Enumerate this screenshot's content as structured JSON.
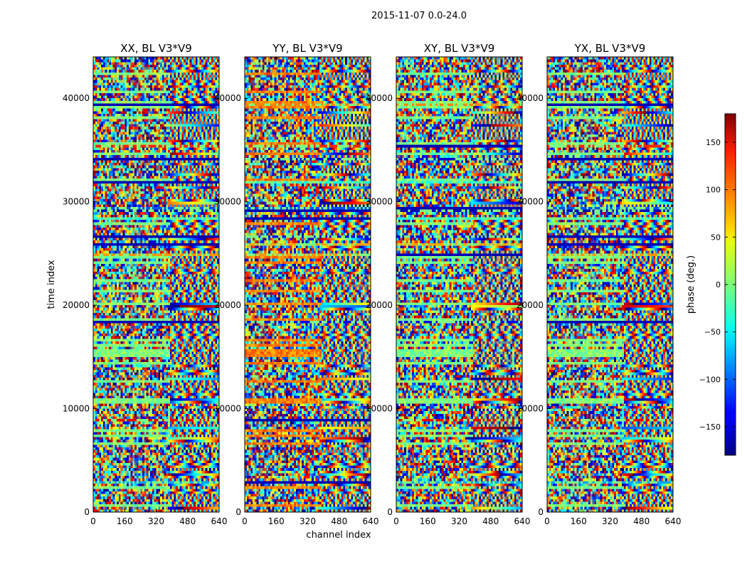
{
  "figure_title": "2015-11-07 0.0-24.0",
  "chart_data": {
    "type": "heatmap",
    "suptitle": "2015-11-07 0.0-24.0",
    "xlabel": "channel index",
    "ylabel": "time index",
    "xlim": [
      0,
      640
    ],
    "ylim": [
      0,
      44000
    ],
    "xticks": [
      0,
      160,
      320,
      480,
      640
    ],
    "yticks": [
      0,
      10000,
      20000,
      30000,
      40000
    ],
    "panels": [
      {
        "title": "XX, BL V3*V9"
      },
      {
        "title": "YY, BL V3*V9"
      },
      {
        "title": "XY, BL V3*V9"
      },
      {
        "title": "YX, BL V3*V9"
      }
    ],
    "colorbar": {
      "label": "phase (deg.)",
      "range": [
        -180,
        180
      ],
      "ticks": [
        -150,
        -100,
        -50,
        0,
        50,
        100,
        150
      ],
      "colormap": "jet"
    }
  },
  "colors": {
    "background": "#ffffff",
    "axes": "#000000"
  }
}
